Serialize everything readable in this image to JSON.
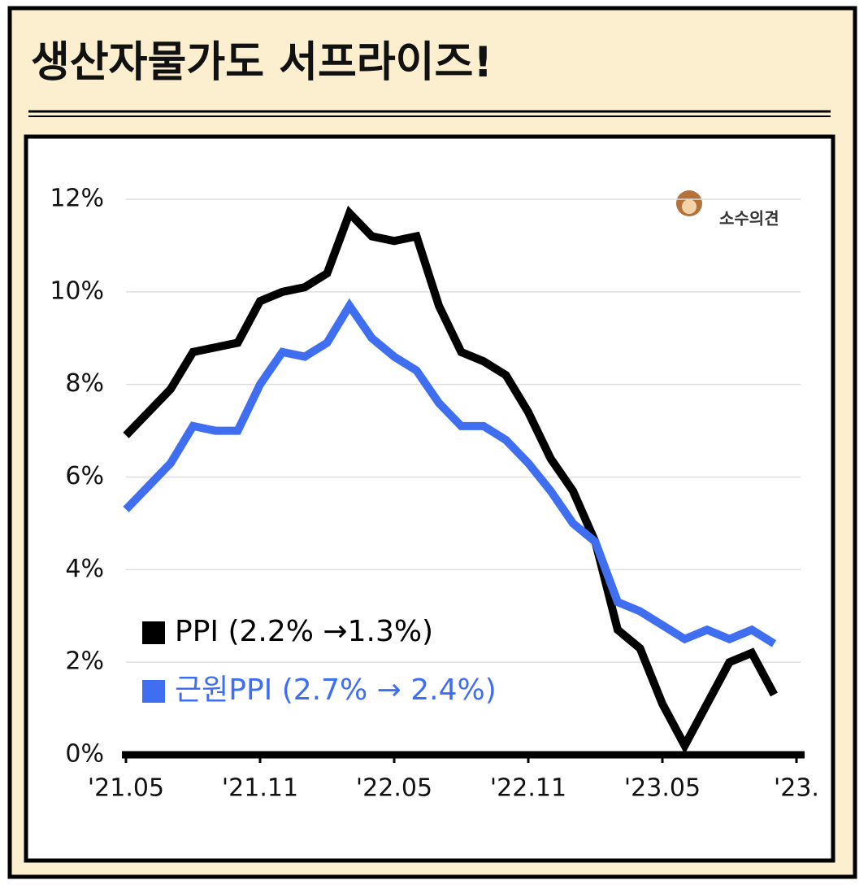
{
  "chart_data": {
    "type": "line",
    "title": "생산자물가도 서프라이즈!",
    "watermark": "소수의견",
    "categories": [
      "'21.05",
      null,
      null,
      null,
      null,
      null,
      "'21.11",
      null,
      null,
      null,
      null,
      null,
      "'22.05",
      null,
      null,
      null,
      null,
      null,
      "'22.11",
      null,
      null,
      null,
      null,
      null,
      "'23.05",
      null,
      null,
      null,
      null,
      null,
      "'23."
    ],
    "series": [
      {
        "name": "PPI (2.2% →1.3%)",
        "color": "#000000",
        "values": [
          6.9,
          7.4,
          7.9,
          8.7,
          8.8,
          8.9,
          9.8,
          10.0,
          10.1,
          10.4,
          11.7,
          11.2,
          11.1,
          11.2,
          9.7,
          8.7,
          8.5,
          8.2,
          7.4,
          6.4,
          5.7,
          4.6,
          2.7,
          2.3,
          1.1,
          0.2,
          1.1,
          2.0,
          2.2,
          1.3,
          null
        ]
      },
      {
        "name": "근원PPI (2.7% → 2.4%)",
        "color": "#3f6ff0",
        "values": [
          5.3,
          5.8,
          6.3,
          7.1,
          7.0,
          7.0,
          8.0,
          8.7,
          8.6,
          8.9,
          9.7,
          9.0,
          8.6,
          8.3,
          7.6,
          7.1,
          7.1,
          6.8,
          6.3,
          5.7,
          5.0,
          4.6,
          3.3,
          3.1,
          2.8,
          2.5,
          2.7,
          2.5,
          2.7,
          2.4,
          null
        ]
      }
    ],
    "ylim": [
      0,
      12
    ],
    "yticks": [
      {
        "value": 0,
        "label": "0%"
      },
      {
        "value": 2,
        "label": "2%"
      },
      {
        "value": 4,
        "label": "4%"
      },
      {
        "value": 6,
        "label": "6%"
      },
      {
        "value": 8,
        "label": "8%"
      },
      {
        "value": 10,
        "label": "10%"
      },
      {
        "value": 12,
        "label": "12%"
      }
    ],
    "grid": true,
    "legend": "bottom-left"
  }
}
